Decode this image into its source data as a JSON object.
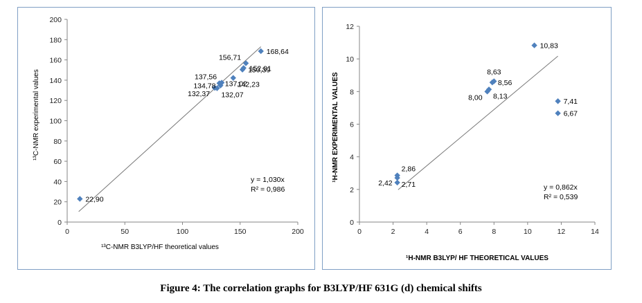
{
  "caption": "Figure 4: The correlation graphs for B3LYP/HF 631G (d) chemical shifts",
  "chart_data": [
    {
      "type": "scatter",
      "xlabel": "¹³C-NMR B3LYP/HF theoretical values",
      "ylabel": "¹³C-NMR experimental values",
      "xlim": [
        0,
        200
      ],
      "ylim": [
        0,
        200
      ],
      "xticks": [
        0,
        50,
        100,
        150,
        200
      ],
      "yticks": [
        0,
        20,
        40,
        60,
        80,
        100,
        120,
        140,
        160,
        180,
        200
      ],
      "grid": false,
      "marker_color": "#4f81bd",
      "trendline": {
        "slope": 1.03,
        "x_range": [
          10,
          168
        ]
      },
      "equation": "y = 1,030x",
      "r2": "R² = 0,986",
      "points": [
        {
          "x": 11,
          "y": 22.9,
          "label": "22,90",
          "label_side": "right"
        },
        {
          "x": 128,
          "y": 132.37,
          "label": "132,37",
          "label_side": "left-below"
        },
        {
          "x": 130,
          "y": 132.07,
          "label": "132,07",
          "label_side": "right-below"
        },
        {
          "x": 132,
          "y": 137.02,
          "label": "137,02",
          "label_side": "right"
        },
        {
          "x": 133,
          "y": 134.78,
          "label": "134,78",
          "label_side": "left"
        },
        {
          "x": 134,
          "y": 137.56,
          "label": "137,56",
          "label_side": "left-above"
        },
        {
          "x": 144,
          "y": 142.23,
          "label": "142,23",
          "label_side": "right-below"
        },
        {
          "x": 152,
          "y": 150.39,
          "label": "150,39",
          "label_side": "right"
        },
        {
          "x": 153,
          "y": 152.01,
          "label": "152,01",
          "label_side": "right"
        },
        {
          "x": 155,
          "y": 156.71,
          "label": "156,71",
          "label_side": "left-above"
        },
        {
          "x": 168,
          "y": 168.64,
          "label": "168,64",
          "label_side": "right"
        }
      ]
    },
    {
      "type": "scatter",
      "xlabel": "¹H-NMR B3LYP/ HF THEORETICAL VALUES",
      "ylabel": "¹H-NMR EXPERIMENTAL VALUES",
      "xlim": [
        0,
        14
      ],
      "ylim": [
        0,
        12
      ],
      "xticks": [
        0,
        2,
        4,
        6,
        8,
        10,
        12,
        14
      ],
      "yticks": [
        0,
        2,
        4,
        6,
        8,
        10,
        12
      ],
      "grid": false,
      "marker_color": "#4f81bd",
      "trendline": {
        "slope": 0.862,
        "x_range": [
          2.3,
          11.8
        ]
      },
      "equation": "y = 0,862x",
      "r2": "R² = 0,539",
      "points": [
        {
          "x": 2.25,
          "y": 2.42,
          "label": "2,42",
          "label_side": "left"
        },
        {
          "x": 2.25,
          "y": 2.71,
          "label": "2,71",
          "label_side": "right-below"
        },
        {
          "x": 2.25,
          "y": 2.86,
          "label": "2,86",
          "label_side": "right-above"
        },
        {
          "x": 7.6,
          "y": 8.0,
          "label": "8,00",
          "label_side": "left-below"
        },
        {
          "x": 7.7,
          "y": 8.13,
          "label": "8,13",
          "label_side": "right-below"
        },
        {
          "x": 7.9,
          "y": 8.56,
          "label": "8,56",
          "label_side": "right"
        },
        {
          "x": 8.0,
          "y": 8.63,
          "label": "8,63",
          "label_side": "above"
        },
        {
          "x": 10.4,
          "y": 10.83,
          "label": "10,83",
          "label_side": "right"
        },
        {
          "x": 11.8,
          "y": 7.41,
          "label": "7,41",
          "label_side": "right"
        },
        {
          "x": 11.8,
          "y": 6.67,
          "label": "6,67",
          "label_side": "right"
        }
      ]
    }
  ]
}
